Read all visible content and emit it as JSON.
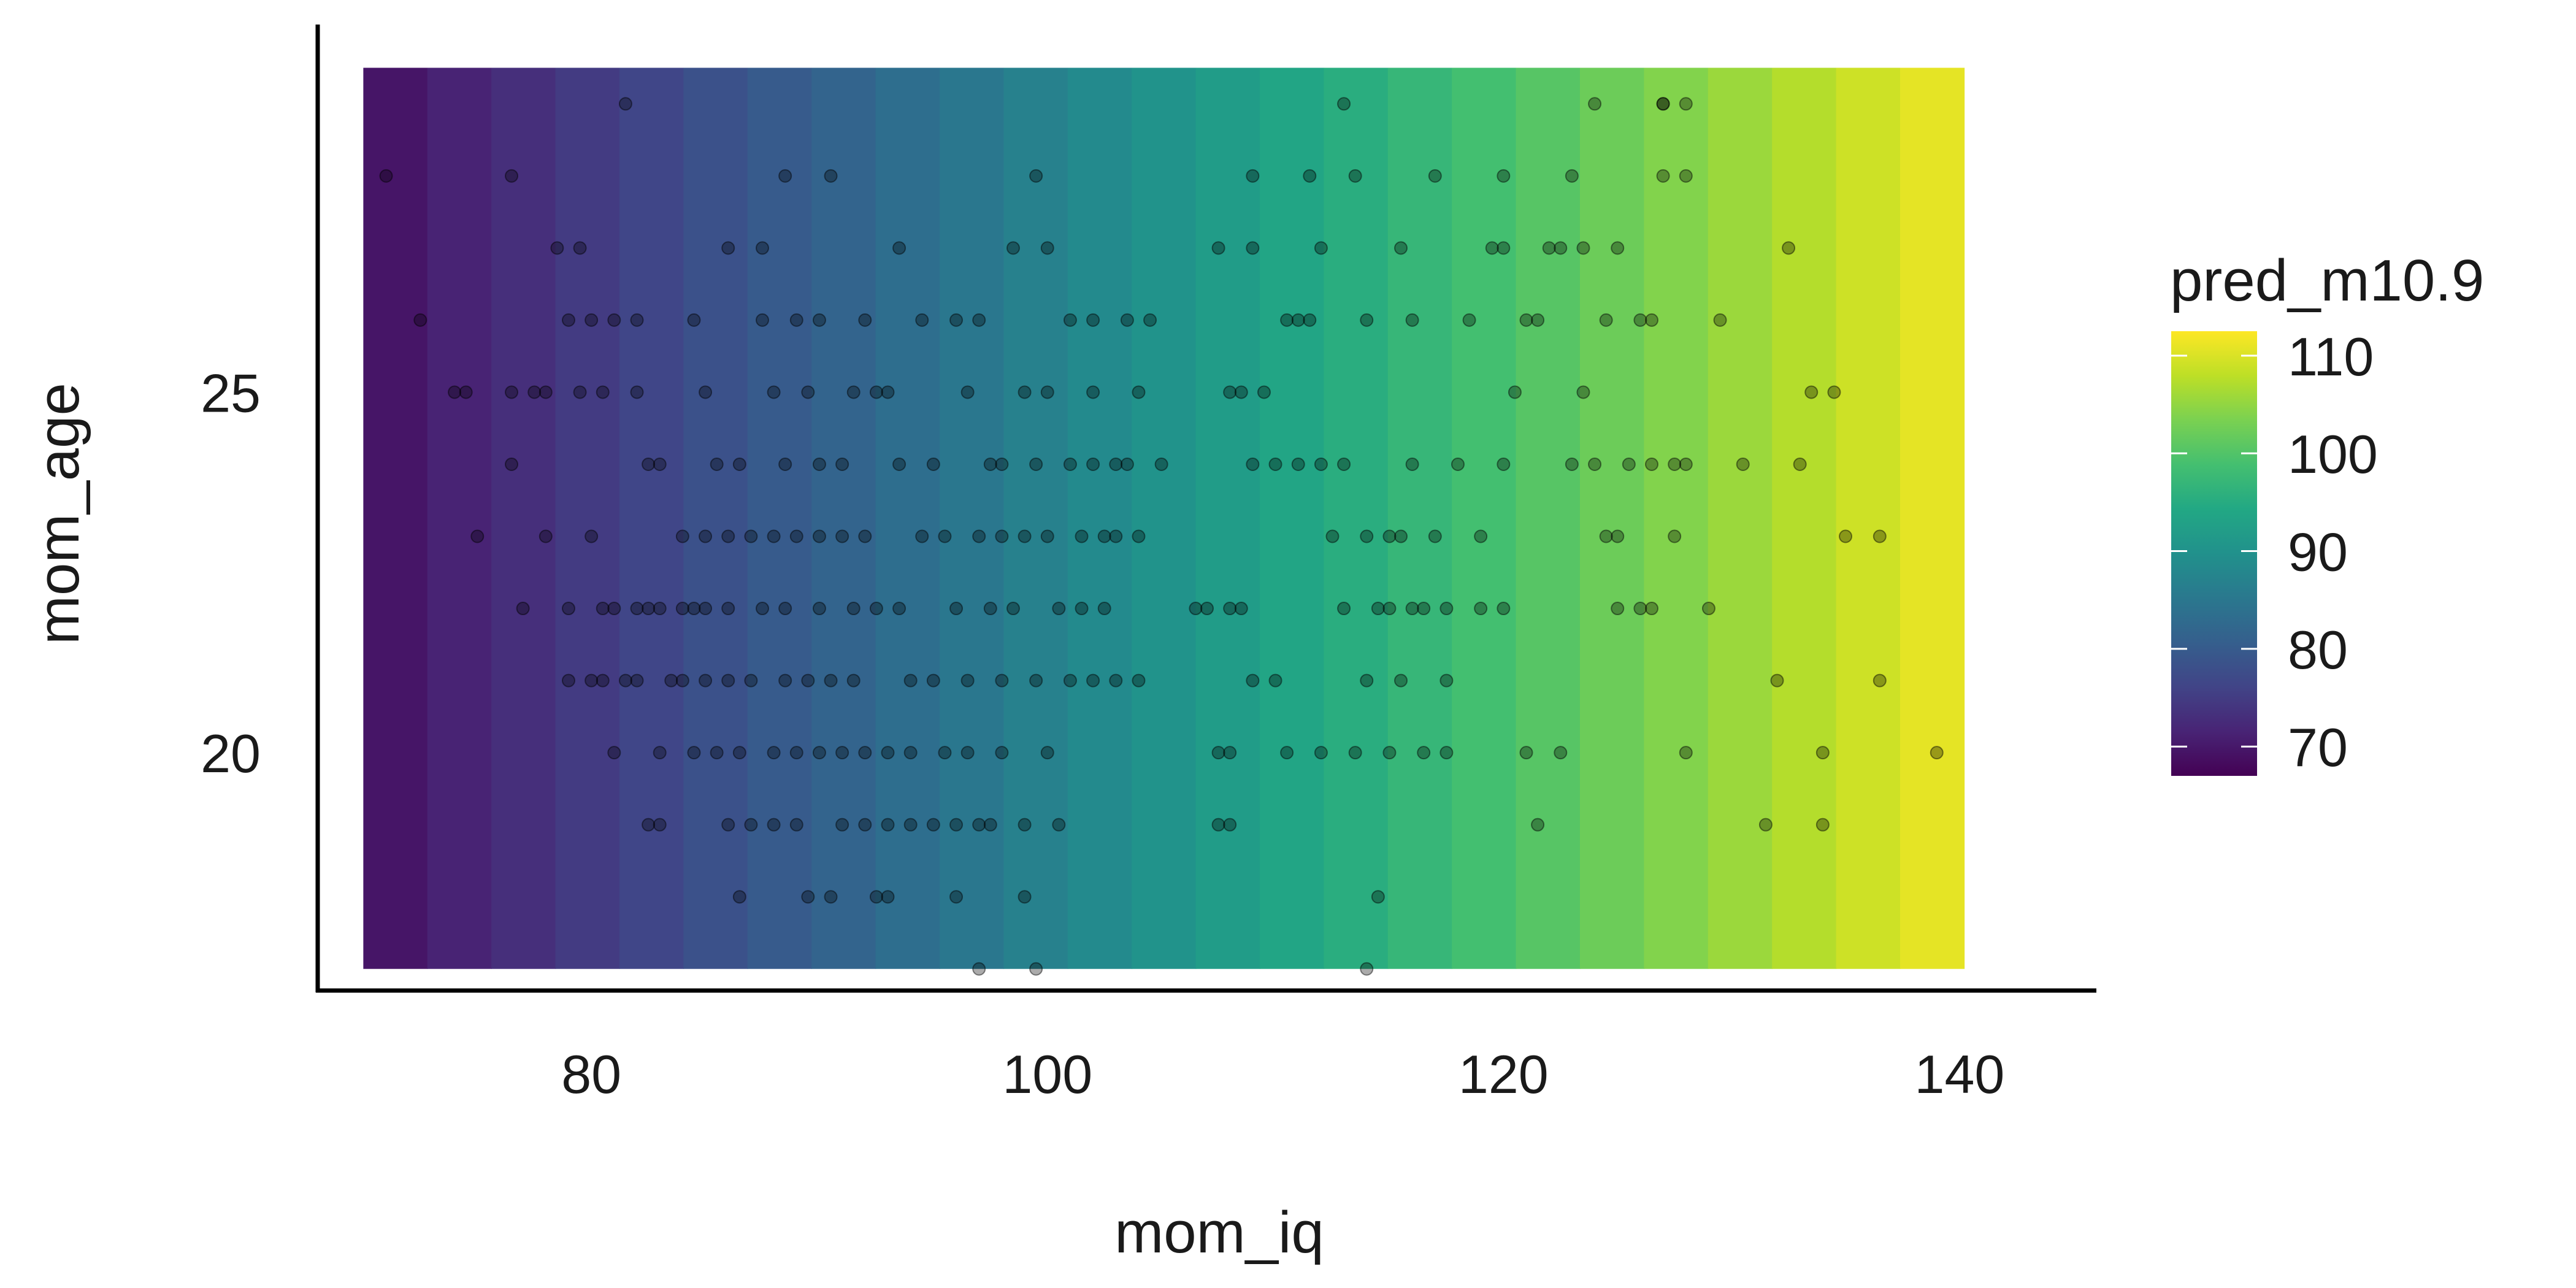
{
  "chart_data": {
    "type": "heatmap",
    "x_label": "mom_iq",
    "y_label": "mom_age",
    "x_ticks": [
      80,
      100,
      120,
      140
    ],
    "y_ticks": [
      20,
      25
    ],
    "xlim": [
      68,
      146
    ],
    "ylim": [
      16.7,
      30.1
    ],
    "tile_range_x": [
      70,
      140.2
    ],
    "tile_range_y": [
      17,
      29.5
    ],
    "tile_count_x": 25,
    "grid": false,
    "legend": {
      "title": "pred_m10.9",
      "ticks": [
        70,
        80,
        90,
        100,
        110
      ],
      "range": [
        67,
        112.5
      ],
      "placement": "right"
    },
    "prediction_model": {
      "intercept": 26.1,
      "slope_mom_iq": 0.61
    },
    "colors": {
      "scale": [
        "#440154",
        "#482475",
        "#414487",
        "#355f8d",
        "#2a788e",
        "#21918c",
        "#22a884",
        "#44bf70",
        "#7ad151",
        "#bddf26",
        "#fde725"
      ],
      "point": "#000000",
      "axis": "#000000"
    },
    "points": [
      [
        71,
        28
      ],
      [
        72.5,
        26
      ],
      [
        74,
        25
      ],
      [
        74.5,
        25
      ],
      [
        75,
        23
      ],
      [
        76.5,
        24
      ],
      [
        76.5,
        28
      ],
      [
        76.5,
        25
      ],
      [
        77,
        22
      ],
      [
        77.5,
        25
      ],
      [
        78,
        23
      ],
      [
        78,
        25
      ],
      [
        78.5,
        27
      ],
      [
        79,
        21
      ],
      [
        79,
        26
      ],
      [
        79,
        22
      ],
      [
        79.5,
        25
      ],
      [
        79.5,
        27
      ],
      [
        80,
        23
      ],
      [
        80,
        21
      ],
      [
        80,
        26
      ],
      [
        80.5,
        25
      ],
      [
        80.5,
        22
      ],
      [
        80.5,
        21
      ],
      [
        81,
        20
      ],
      [
        81.5,
        29
      ],
      [
        81,
        26
      ],
      [
        81,
        22
      ],
      [
        81.5,
        21
      ],
      [
        82,
        25
      ],
      [
        82,
        22
      ],
      [
        82,
        21
      ],
      [
        82,
        26
      ],
      [
        82.5,
        19
      ],
      [
        82.5,
        22
      ],
      [
        82.5,
        24
      ],
      [
        83,
        22
      ],
      [
        83,
        24
      ],
      [
        83,
        20
      ],
      [
        83,
        19
      ],
      [
        83.5,
        21
      ],
      [
        84,
        22
      ],
      [
        84,
        23
      ],
      [
        84,
        21
      ],
      [
        84.5,
        20
      ],
      [
        84.5,
        22
      ],
      [
        84.5,
        26
      ],
      [
        85,
        21
      ],
      [
        85,
        23
      ],
      [
        85,
        22
      ],
      [
        85,
        25
      ],
      [
        85.5,
        24
      ],
      [
        85.5,
        20
      ],
      [
        86,
        23
      ],
      [
        86,
        21
      ],
      [
        86,
        19
      ],
      [
        86,
        27
      ],
      [
        86,
        22
      ],
      [
        86.5,
        20
      ],
      [
        86.5,
        24
      ],
      [
        86.5,
        18
      ],
      [
        87,
        23
      ],
      [
        87,
        21
      ],
      [
        87,
        19
      ],
      [
        87.5,
        22
      ],
      [
        87.5,
        27
      ],
      [
        87.5,
        26
      ],
      [
        88,
        20
      ],
      [
        88,
        23
      ],
      [
        88,
        19
      ],
      [
        88,
        25
      ],
      [
        88.5,
        21
      ],
      [
        88.5,
        22
      ],
      [
        88.5,
        24
      ],
      [
        88.5,
        28
      ],
      [
        89,
        23
      ],
      [
        89,
        20
      ],
      [
        89,
        26
      ],
      [
        89,
        19
      ],
      [
        89.5,
        25
      ],
      [
        89.5,
        21
      ],
      [
        89.5,
        18
      ],
      [
        90,
        23
      ],
      [
        90,
        22
      ],
      [
        90,
        24
      ],
      [
        90,
        20
      ],
      [
        90,
        26
      ],
      [
        90.5,
        28
      ],
      [
        90.5,
        18
      ],
      [
        90.5,
        21
      ],
      [
        91,
        20
      ],
      [
        91,
        23
      ],
      [
        91,
        24
      ],
      [
        91,
        19
      ],
      [
        91.5,
        25
      ],
      [
        91.5,
        22
      ],
      [
        91.5,
        21
      ],
      [
        92,
        26
      ],
      [
        92,
        20
      ],
      [
        92,
        23
      ],
      [
        92,
        19
      ],
      [
        92.5,
        25
      ],
      [
        92.5,
        22
      ],
      [
        92.5,
        18
      ],
      [
        93,
        25
      ],
      [
        93,
        20
      ],
      [
        93,
        19
      ],
      [
        93,
        18
      ],
      [
        93.5,
        24
      ],
      [
        93.5,
        22
      ],
      [
        93.5,
        27
      ],
      [
        94,
        20
      ],
      [
        94,
        21
      ],
      [
        94,
        19
      ],
      [
        94.5,
        23
      ],
      [
        94.5,
        26
      ],
      [
        95,
        24
      ],
      [
        95,
        21
      ],
      [
        95,
        19
      ],
      [
        95.5,
        20
      ],
      [
        95.5,
        23
      ],
      [
        96,
        26
      ],
      [
        96,
        22
      ],
      [
        96,
        19
      ],
      [
        96,
        18
      ],
      [
        96.5,
        25
      ],
      [
        96.5,
        20
      ],
      [
        96.5,
        21
      ],
      [
        97,
        23
      ],
      [
        97,
        26
      ],
      [
        97,
        19
      ],
      [
        97,
        17
      ],
      [
        97.5,
        24
      ],
      [
        97.5,
        22
      ],
      [
        97.5,
        19
      ],
      [
        98,
        24
      ],
      [
        98,
        21
      ],
      [
        98,
        20
      ],
      [
        98,
        23
      ],
      [
        98.5,
        27
      ],
      [
        98.5,
        22
      ],
      [
        99,
        25
      ],
      [
        99,
        23
      ],
      [
        99,
        19
      ],
      [
        99,
        18
      ],
      [
        99.5,
        24
      ],
      [
        99.5,
        21
      ],
      [
        99.5,
        17
      ],
      [
        99.5,
        28
      ],
      [
        100,
        25
      ],
      [
        100,
        23
      ],
      [
        100,
        27
      ],
      [
        100,
        20
      ],
      [
        100.5,
        22
      ],
      [
        100.5,
        19
      ],
      [
        101,
        24
      ],
      [
        101,
        26
      ],
      [
        101,
        21
      ],
      [
        101.5,
        23
      ],
      [
        101.5,
        22
      ],
      [
        102,
        25
      ],
      [
        102,
        24
      ],
      [
        102,
        26
      ],
      [
        102,
        21
      ],
      [
        102.5,
        23
      ],
      [
        102.5,
        22
      ],
      [
        103,
        24
      ],
      [
        103,
        23
      ],
      [
        103,
        21
      ],
      [
        103.5,
        26
      ],
      [
        103.5,
        24
      ],
      [
        104,
        25
      ],
      [
        104,
        23
      ],
      [
        104,
        21
      ],
      [
        104.5,
        26
      ],
      [
        105,
        24
      ],
      [
        106.5,
        22
      ],
      [
        107,
        22
      ],
      [
        107.5,
        20
      ],
      [
        107.5,
        19
      ],
      [
        107.5,
        27
      ],
      [
        108,
        22
      ],
      [
        108,
        25
      ],
      [
        108,
        20
      ],
      [
        108,
        19
      ],
      [
        108.5,
        22
      ],
      [
        108.5,
        25
      ],
      [
        109,
        24
      ],
      [
        109,
        27
      ],
      [
        109,
        21
      ],
      [
        109,
        28
      ],
      [
        109.5,
        25
      ],
      [
        110,
        24
      ],
      [
        110,
        21
      ],
      [
        110.5,
        26
      ],
      [
        110.5,
        20
      ],
      [
        111,
        26
      ],
      [
        111,
        24
      ],
      [
        111.5,
        28
      ],
      [
        111.5,
        26
      ],
      [
        112,
        24
      ],
      [
        112,
        20
      ],
      [
        112,
        27
      ],
      [
        112.5,
        23
      ],
      [
        113,
        22
      ],
      [
        113,
        24
      ],
      [
        113,
        29
      ],
      [
        113.5,
        20
      ],
      [
        113.5,
        28
      ],
      [
        114,
        21
      ],
      [
        114,
        23
      ],
      [
        114,
        26
      ],
      [
        114,
        17
      ],
      [
        114.5,
        22
      ],
      [
        114.5,
        18
      ],
      [
        115,
        23
      ],
      [
        115,
        20
      ],
      [
        115,
        22
      ],
      [
        115.5,
        21
      ],
      [
        115.5,
        23
      ],
      [
        115.5,
        27
      ],
      [
        116,
        22
      ],
      [
        116,
        24
      ],
      [
        116,
        26
      ],
      [
        116.5,
        20
      ],
      [
        116.5,
        22
      ],
      [
        117,
        23
      ],
      [
        117,
        28
      ],
      [
        117.5,
        21
      ],
      [
        117.5,
        22
      ],
      [
        117.5,
        20
      ],
      [
        118,
        24
      ],
      [
        118.5,
        26
      ],
      [
        119,
        22
      ],
      [
        119,
        23
      ],
      [
        119.5,
        27
      ],
      [
        120,
        28
      ],
      [
        120,
        22
      ],
      [
        120,
        24
      ],
      [
        120,
        27
      ],
      [
        120.5,
        25
      ],
      [
        121,
        26
      ],
      [
        121,
        20
      ],
      [
        121.5,
        19
      ],
      [
        121.5,
        26
      ],
      [
        122,
        27
      ],
      [
        122.5,
        27
      ],
      [
        122.5,
        20
      ],
      [
        123,
        24
      ],
      [
        123,
        28
      ],
      [
        123.5,
        27
      ],
      [
        123.5,
        25
      ],
      [
        124,
        24
      ],
      [
        124,
        29
      ],
      [
        124.5,
        23
      ],
      [
        124.5,
        26
      ],
      [
        125,
        23
      ],
      [
        125,
        27
      ],
      [
        125,
        22
      ],
      [
        125.5,
        24
      ],
      [
        126,
        22
      ],
      [
        126,
        26
      ],
      [
        126.5,
        22
      ],
      [
        126.5,
        24
      ],
      [
        126.5,
        26
      ],
      [
        127,
        29
      ],
      [
        127,
        28
      ],
      [
        127,
        29
      ],
      [
        127.5,
        24
      ],
      [
        127.5,
        23
      ],
      [
        128,
        28
      ],
      [
        128,
        24
      ],
      [
        128,
        29
      ],
      [
        128,
        20
      ],
      [
        129,
        22
      ],
      [
        129.5,
        26
      ],
      [
        130.5,
        24
      ],
      [
        131.5,
        19
      ],
      [
        132,
        21
      ],
      [
        132.5,
        27
      ],
      [
        133,
        24
      ],
      [
        133.5,
        25
      ],
      [
        134,
        19
      ],
      [
        134,
        20
      ],
      [
        134.5,
        25
      ],
      [
        135,
        23
      ],
      [
        136.5,
        23
      ],
      [
        136.5,
        21
      ],
      [
        139,
        20
      ]
    ]
  }
}
